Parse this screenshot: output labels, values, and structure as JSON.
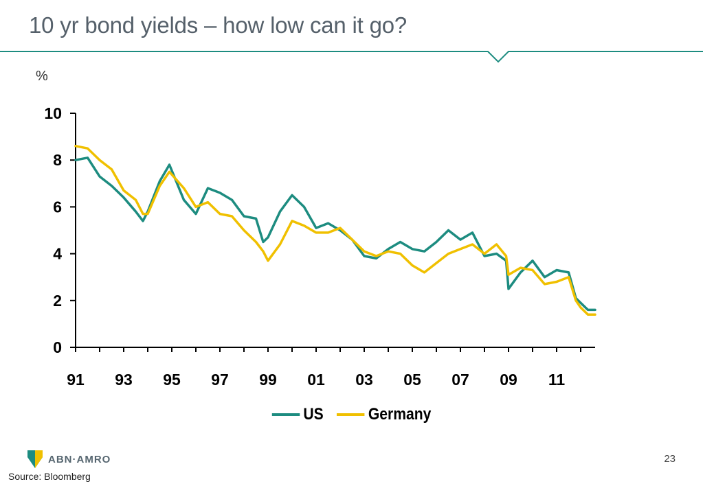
{
  "slide": {
    "title": "10 yr bond yields – how low can it go?",
    "page_number": "23",
    "source": "Source: Bloomberg",
    "logo_text": "ABN·AMRO",
    "accent_color": "#1d8c80"
  },
  "chart_data": {
    "type": "line",
    "title": "",
    "unit_label": "%",
    "xlabel": "",
    "ylabel": "",
    "xlim": [
      1991,
      2012.6
    ],
    "ylim": [
      0,
      10
    ],
    "y_ticks": [
      0,
      2,
      4,
      6,
      8,
      10
    ],
    "x_tick_labels": [
      "91",
      "93",
      "95",
      "97",
      "99",
      "01",
      "03",
      "05",
      "07",
      "09",
      "11"
    ],
    "x_tick_years": [
      1991,
      1993,
      1995,
      1997,
      1999,
      2001,
      2003,
      2005,
      2007,
      2009,
      2011
    ],
    "grid": false,
    "legend_position": "bottom",
    "x": [
      1991.0,
      1991.5,
      1992.0,
      1992.5,
      1993.0,
      1993.5,
      1993.8,
      1994.0,
      1994.5,
      1994.9,
      1995.5,
      1996.0,
      1996.5,
      1997.0,
      1997.5,
      1998.0,
      1998.5,
      1998.8,
      1999.0,
      1999.5,
      2000.0,
      2000.5,
      2001.0,
      2001.5,
      2002.0,
      2002.5,
      2003.0,
      2003.5,
      2004.0,
      2004.5,
      2005.0,
      2005.5,
      2006.0,
      2006.5,
      2007.0,
      2007.5,
      2008.0,
      2008.5,
      2008.9,
      2009.0,
      2009.5,
      2010.0,
      2010.5,
      2011.0,
      2011.5,
      2011.8,
      2012.0,
      2012.3,
      2012.6
    ],
    "series": [
      {
        "name": "US",
        "color": "#1d8c80",
        "values": [
          8.0,
          8.1,
          7.3,
          6.9,
          6.4,
          5.8,
          5.4,
          5.8,
          7.1,
          7.8,
          6.3,
          5.7,
          6.8,
          6.6,
          6.3,
          5.6,
          5.5,
          4.5,
          4.7,
          5.8,
          6.5,
          6.0,
          5.1,
          5.3,
          5.0,
          4.6,
          3.9,
          3.8,
          4.2,
          4.5,
          4.2,
          4.1,
          4.5,
          5.0,
          4.6,
          4.9,
          3.9,
          4.0,
          3.7,
          2.5,
          3.2,
          3.7,
          3.0,
          3.3,
          3.2,
          2.1,
          1.9,
          1.6,
          1.6
        ]
      },
      {
        "name": "Germany",
        "color": "#f0c000",
        "values": [
          8.6,
          8.5,
          8.0,
          7.6,
          6.7,
          6.3,
          5.7,
          5.7,
          6.9,
          7.5,
          6.8,
          6.0,
          6.2,
          5.7,
          5.6,
          5.0,
          4.5,
          4.1,
          3.7,
          4.4,
          5.4,
          5.2,
          4.9,
          4.9,
          5.1,
          4.6,
          4.1,
          3.9,
          4.1,
          4.0,
          3.5,
          3.2,
          3.6,
          4.0,
          4.2,
          4.4,
          4.0,
          4.4,
          3.9,
          3.1,
          3.4,
          3.3,
          2.7,
          2.8,
          3.0,
          2.0,
          1.7,
          1.4,
          1.4
        ]
      }
    ]
  }
}
